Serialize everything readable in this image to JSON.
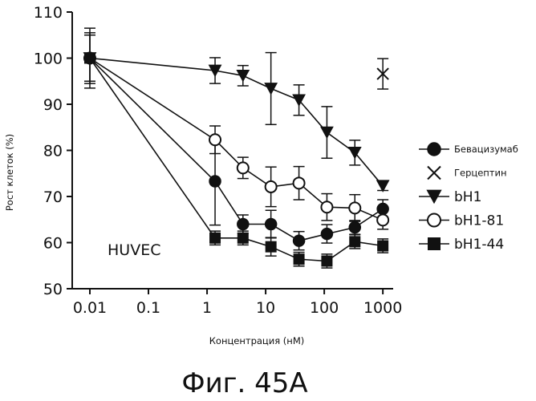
{
  "chart_data": {
    "type": "line",
    "xlabel": "Концентрация (нМ)",
    "ylabel": "Рост клеток (%)",
    "x_scale": "log",
    "xlim": [
      0.005,
      1500
    ],
    "ylim": [
      50,
      110
    ],
    "x_ticks": [
      {
        "value": 0.01,
        "label": "0.01"
      },
      {
        "value": 0.1,
        "label": "0.1"
      },
      {
        "value": 1,
        "label": "1"
      },
      {
        "value": 10,
        "label": "10"
      },
      {
        "value": 100,
        "label": "100"
      },
      {
        "value": 1000,
        "label": "1000"
      }
    ],
    "y_ticks": [
      {
        "value": 50,
        "label": "50"
      },
      {
        "value": 60,
        "label": "60"
      },
      {
        "value": 70,
        "label": "70"
      },
      {
        "value": 80,
        "label": "80"
      },
      {
        "value": 90,
        "label": "90"
      },
      {
        "value": 100,
        "label": "100"
      },
      {
        "value": 110,
        "label": "110"
      }
    ],
    "annotation": "HUVEC",
    "caption": "Фиг. 45A",
    "legend_position": "right",
    "grid": false,
    "series": [
      {
        "name": "Бевацизумаб",
        "marker": "filled-circle",
        "connected": true,
        "points": [
          {
            "x": 0.01,
            "y": 100,
            "err": 0
          },
          {
            "x": 1.37,
            "y": 73.3,
            "err": 9.5
          },
          {
            "x": 4.1,
            "y": 64.0,
            "err": 2.0
          },
          {
            "x": 12.3,
            "y": 64.0,
            "err": 3.0
          },
          {
            "x": 37,
            "y": 60.4,
            "err": 2.0
          },
          {
            "x": 111,
            "y": 61.9,
            "err": 2.0
          },
          {
            "x": 333,
            "y": 63.3,
            "err": 1.5
          },
          {
            "x": 1000,
            "y": 67.3,
            "err": 2.0
          }
        ]
      },
      {
        "name": "Герцептин",
        "marker": "x",
        "connected": false,
        "points": [
          {
            "x": 1000,
            "y": 96.6,
            "err": 3.3
          }
        ]
      },
      {
        "name": "bH1",
        "marker": "filled-triangle-down",
        "connected": true,
        "points": [
          {
            "x": 0.01,
            "y": 100,
            "err": 6.5
          },
          {
            "x": 1.37,
            "y": 97.3,
            "err": 2.8
          },
          {
            "x": 4.1,
            "y": 96.2,
            "err": 2.2
          },
          {
            "x": 12.3,
            "y": 93.4,
            "err": 7.8
          },
          {
            "x": 37,
            "y": 90.9,
            "err": 3.3
          },
          {
            "x": 111,
            "y": 83.9,
            "err": 5.6
          },
          {
            "x": 333,
            "y": 79.5,
            "err": 2.7
          },
          {
            "x": 1000,
            "y": 72.3,
            "err": 1.0
          }
        ]
      },
      {
        "name": "bH1-81",
        "marker": "open-circle",
        "connected": true,
        "points": [
          {
            "x": 0.01,
            "y": 100,
            "err": 5.5
          },
          {
            "x": 1.37,
            "y": 82.3,
            "err": 3.0
          },
          {
            "x": 4.1,
            "y": 76.2,
            "err": 2.3
          },
          {
            "x": 12.3,
            "y": 72.1,
            "err": 4.3
          },
          {
            "x": 37,
            "y": 72.9,
            "err": 3.6
          },
          {
            "x": 111,
            "y": 67.7,
            "err": 2.9
          },
          {
            "x": 333,
            "y": 67.5,
            "err": 2.9
          },
          {
            "x": 1000,
            "y": 64.9,
            "err": 2.0
          }
        ]
      },
      {
        "name": "bH1-44",
        "marker": "filled-square",
        "connected": true,
        "points": [
          {
            "x": 0.01,
            "y": 100,
            "err": 5.0
          },
          {
            "x": 1.37,
            "y": 61.0,
            "err": 1.5
          },
          {
            "x": 4.1,
            "y": 61.0,
            "err": 1.5
          },
          {
            "x": 12.3,
            "y": 59.1,
            "err": 2.0
          },
          {
            "x": 37,
            "y": 56.4,
            "err": 1.5
          },
          {
            "x": 111,
            "y": 56.0,
            "err": 1.5
          },
          {
            "x": 333,
            "y": 60.2,
            "err": 1.5
          },
          {
            "x": 1000,
            "y": 59.3,
            "err": 1.5
          }
        ]
      }
    ]
  }
}
